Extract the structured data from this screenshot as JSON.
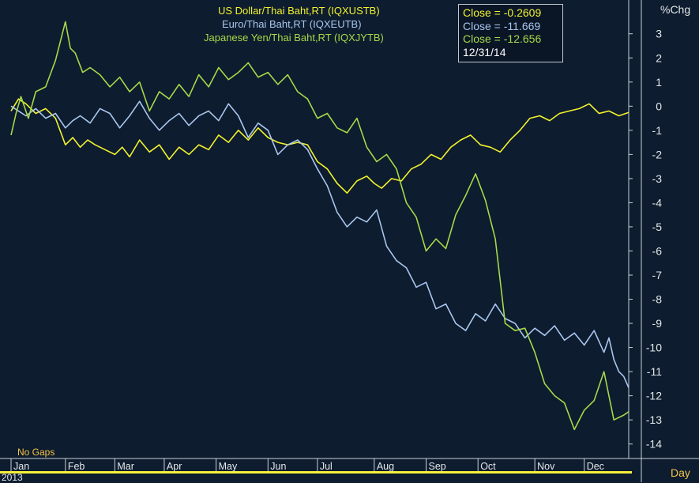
{
  "colors": {
    "background": "#0d1c2e",
    "usd": "#f2f22e",
    "eur": "#a9c6ee",
    "jpy": "#a6d94a",
    "axis_text": "#e3e7ea",
    "bottom_bar": "#f5f13a"
  },
  "legend": {
    "usd": "US  Dollar/Thai  Baht,RT  (IQXUSTB)",
    "eur": "Euro/Thai  Baht,RT  (IQXEUTB)",
    "jpy": "Japanese  Yen/Thai  Baht,RT  (IQXJYTB)"
  },
  "tooltip": {
    "usd": "Close  =  -0.2609",
    "eur": "Close  =  -11.669",
    "jpy": "Close  =  -12.656",
    "date": "12/31/14"
  },
  "axis": {
    "y_unit": "%Chg",
    "x_unit": "Day",
    "no_gaps": "No  Gaps",
    "year": "2013"
  },
  "chart_data": {
    "type": "line",
    "x_unit": "trading day of year (0-250)",
    "ylim": [
      -14.6,
      4.4
    ],
    "y_ticks": [
      3,
      2,
      1,
      0,
      -1,
      -2,
      -3,
      -4,
      -5,
      -6,
      -7,
      -8,
      -9,
      -10,
      -11,
      -12,
      -13,
      -14
    ],
    "x_ticks": [
      {
        "label": "Jan",
        "day": 0
      },
      {
        "label": "Feb",
        "day": 22
      },
      {
        "label": "Mar",
        "day": 42
      },
      {
        "label": "Apr",
        "day": 62
      },
      {
        "label": "May",
        "day": 83
      },
      {
        "label": "Jun",
        "day": 104
      },
      {
        "label": "Jul",
        "day": 124
      },
      {
        "label": "Aug",
        "day": 147
      },
      {
        "label": "Sep",
        "day": 168
      },
      {
        "label": "Oct",
        "day": 189
      },
      {
        "label": "Nov",
        "day": 212
      },
      {
        "label": "Dec",
        "day": 232
      }
    ],
    "series": [
      {
        "name": "US  Dollar/Thai  Baht,RT  (IQXUSTB)",
        "color_key": "usd",
        "x": [
          0,
          3,
          6,
          10,
          14,
          18,
          22,
          25,
          28,
          31,
          34,
          38,
          42,
          45,
          48,
          52,
          56,
          60,
          64,
          68,
          72,
          76,
          80,
          84,
          88,
          92,
          96,
          100,
          104,
          108,
          112,
          116,
          120,
          124,
          128,
          132,
          136,
          140,
          144,
          147,
          150,
          154,
          158,
          162,
          166,
          170,
          174,
          178,
          182,
          186,
          190,
          194,
          198,
          202,
          206,
          210,
          214,
          218,
          222,
          226,
          230,
          234,
          238,
          242,
          246,
          250
        ],
        "values": [
          -0.2,
          0.3,
          0.1,
          -0.3,
          -0.1,
          -0.5,
          -1.6,
          -1.3,
          -1.7,
          -1.4,
          -1.6,
          -1.8,
          -2.0,
          -1.7,
          -2.1,
          -1.4,
          -1.9,
          -1.6,
          -2.2,
          -1.7,
          -2.0,
          -1.6,
          -1.8,
          -1.2,
          -1.5,
          -1.0,
          -1.4,
          -0.9,
          -1.3,
          -1.5,
          -1.6,
          -1.5,
          -1.6,
          -2.3,
          -2.6,
          -3.2,
          -3.6,
          -3.1,
          -2.9,
          -3.2,
          -3.4,
          -3.0,
          -3.1,
          -2.6,
          -2.4,
          -2.0,
          -2.2,
          -1.7,
          -1.4,
          -1.2,
          -1.6,
          -1.7,
          -1.9,
          -1.4,
          -1.0,
          -0.5,
          -0.4,
          -0.6,
          -0.3,
          -0.2,
          -0.1,
          0.1,
          -0.3,
          -0.2,
          -0.4,
          -0.26
        ]
      },
      {
        "name": "Euro/Thai  Baht,RT  (IQXEUTB)",
        "color_key": "eur",
        "x": [
          0,
          3,
          6,
          10,
          14,
          18,
          22,
          25,
          28,
          32,
          36,
          40,
          44,
          48,
          52,
          56,
          60,
          64,
          68,
          72,
          76,
          80,
          84,
          88,
          92,
          96,
          100,
          104,
          108,
          112,
          116,
          120,
          124,
          128,
          132,
          136,
          140,
          144,
          148,
          152,
          156,
          160,
          164,
          168,
          172,
          176,
          180,
          184,
          188,
          192,
          196,
          200,
          204,
          208,
          212,
          216,
          220,
          224,
          228,
          232,
          236,
          240,
          242,
          244,
          246,
          248,
          250
        ],
        "values": [
          0.0,
          -0.2,
          -0.4,
          -0.1,
          -0.5,
          -0.3,
          -0.9,
          -0.6,
          -0.4,
          -0.7,
          -0.1,
          -0.3,
          -0.9,
          -0.4,
          0.2,
          -0.5,
          -1.0,
          -0.6,
          -0.3,
          -0.8,
          -0.4,
          -0.2,
          -0.6,
          0.1,
          -0.4,
          -1.3,
          -0.7,
          -1.0,
          -2.0,
          -1.6,
          -1.4,
          -1.8,
          -2.6,
          -3.3,
          -4.4,
          -5.0,
          -4.6,
          -4.8,
          -4.3,
          -5.8,
          -6.4,
          -6.7,
          -7.5,
          -7.3,
          -8.4,
          -8.2,
          -9.0,
          -9.3,
          -8.6,
          -8.9,
          -8.2,
          -8.8,
          -9.0,
          -9.6,
          -9.2,
          -9.5,
          -9.1,
          -9.7,
          -9.4,
          -9.9,
          -9.3,
          -10.2,
          -9.6,
          -10.5,
          -11.0,
          -11.2,
          -11.67
        ]
      },
      {
        "name": "Japanese  Yen/Thai  Baht,RT  (IQXJYTB)",
        "color_key": "jpy",
        "x": [
          0,
          2,
          4,
          7,
          10,
          14,
          18,
          22,
          24,
          26,
          29,
          32,
          36,
          40,
          44,
          48,
          52,
          56,
          60,
          64,
          68,
          72,
          76,
          80,
          84,
          88,
          92,
          96,
          100,
          104,
          108,
          112,
          116,
          120,
          124,
          128,
          132,
          136,
          140,
          144,
          148,
          152,
          156,
          160,
          164,
          168,
          172,
          176,
          180,
          184,
          188,
          192,
          196,
          200,
          204,
          208,
          212,
          216,
          220,
          224,
          228,
          232,
          236,
          240,
          244,
          248,
          250
        ],
        "values": [
          -1.2,
          -0.3,
          0.4,
          -0.5,
          0.6,
          0.8,
          1.9,
          3.5,
          2.4,
          2.2,
          1.4,
          1.6,
          1.3,
          0.8,
          1.2,
          0.6,
          1.0,
          -0.2,
          0.6,
          0.3,
          0.9,
          0.4,
          1.3,
          0.8,
          1.6,
          1.1,
          1.4,
          1.8,
          1.2,
          1.4,
          0.9,
          1.3,
          0.6,
          0.3,
          -0.5,
          -0.3,
          -0.9,
          -1.1,
          -0.5,
          -1.7,
          -2.3,
          -2.0,
          -2.6,
          -4.0,
          -4.6,
          -6.0,
          -5.5,
          -5.9,
          -4.5,
          -3.7,
          -2.8,
          -3.9,
          -5.5,
          -9.0,
          -9.3,
          -9.2,
          -10.2,
          -11.5,
          -12.0,
          -12.3,
          -13.4,
          -12.6,
          -12.2,
          -11.0,
          -13.0,
          -12.8,
          -12.66
        ]
      }
    ]
  }
}
